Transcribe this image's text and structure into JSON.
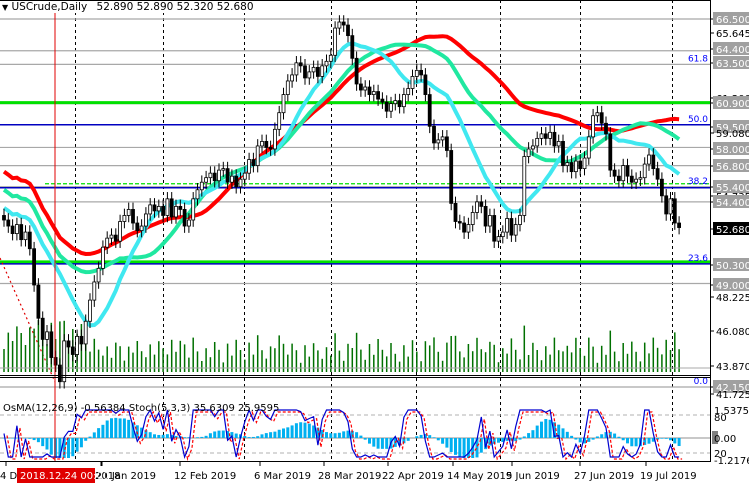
{
  "header": {
    "symbol": "USCrude,Daily",
    "ohlc": "52.890 52.890 52.320 52.680",
    "arrow": "▼"
  },
  "indicator_label": "OsMA(12,26,9) -0.56384  Stoch(5,3,3) 35.6309 25.9595",
  "cursor_time_label": "2018.12.24 00:00",
  "colors": {
    "bull_candle": "#ffffff",
    "bear_candle": "#000000",
    "ma_fast": "#40e8f0",
    "ma_mid": "#20e8a0",
    "ma_slow": "#ff0000",
    "level_green": "#00e000",
    "level_blue": "#0000c0",
    "volume": "#007000",
    "osma": "#00b0f0",
    "stoch_main": "#0000d0",
    "stoch_signal": "#ff0000",
    "cursor": "#e00000",
    "price_tag_bg": "#a0a0a0",
    "current_price_bg": "#000000"
  },
  "chart_data": [
    {
      "type": "candlestick",
      "title": "USCrude, Daily",
      "ohlc_last": {
        "open": 52.89,
        "high": 52.89,
        "low": 52.32,
        "close": 52.68
      },
      "x_ticks": [
        "4 Dec 2018",
        "2018.12.24 00:00",
        "21 Jan 2019",
        "12 Feb 2019",
        "6 Mar 2019",
        "28 Mar 2019",
        "22 Apr 2019",
        "14 May 2019",
        "5 Jun 2019",
        "27 Jun 2019",
        "19 Jul 2019"
      ],
      "y_axis_labels": [
        "66.500",
        "65.645",
        "64.400",
        "63.500",
        "61.200",
        "60.900",
        "59.500",
        "59.080",
        "58.000",
        "56.800",
        "55.400",
        "54.735",
        "54.400",
        "52.680",
        "50.300",
        "49.000",
        "48.225",
        "46.080",
        "43.870",
        "42.150",
        "41.725"
      ],
      "ylim": [
        41.725,
        67.3
      ],
      "highlighted_levels": [
        66.5,
        64.4,
        63.5,
        60.9,
        59.5,
        58.0,
        56.8,
        55.4,
        54.4,
        50.3,
        49.0,
        42.15
      ],
      "current_price": 52.68,
      "fibonacci_levels": [
        {
          "label": "61.8",
          "price": 63.5
        },
        {
          "label": "50.0",
          "price": 59.5
        },
        {
          "label": "38.2",
          "price": 55.4
        },
        {
          "label": "23.6",
          "price": 50.3
        },
        {
          "label": "0.0",
          "price": 42.15
        }
      ],
      "closes_approx": [
        53.2,
        52.8,
        52.3,
        52.9,
        51.9,
        52.4,
        51.3,
        48.9,
        46.7,
        45.3,
        45.8,
        44.1,
        43.6,
        42.5,
        45.2,
        44.8,
        44.3,
        45.5,
        45.0,
        46.5,
        47.9,
        49.1,
        50.0,
        51.4,
        52.0,
        52.2,
        51.8,
        53.1,
        53.5,
        53.9,
        53.0,
        52.5,
        52.8,
        53.6,
        54.2,
        53.8,
        54.1,
        53.5,
        54.6,
        53.4,
        54.1,
        53.9,
        52.8,
        53.2,
        54.6,
        55.2,
        55.7,
        56.0,
        56.3,
        55.8,
        56.5,
        56.6,
        55.7,
        56.1,
        55.4,
        55.9,
        56.3,
        57.2,
        56.8,
        58.1,
        58.4,
        58.0,
        57.9,
        59.2,
        60.3,
        61.5,
        62.4,
        62.8,
        63.6,
        63.4,
        62.6,
        63.0,
        63.3,
        62.7,
        63.4,
        63.7,
        64.1,
        65.9,
        66.3,
        66.1,
        65.4,
        63.9,
        62.2,
        61.8,
        62.0,
        61.5,
        61.7,
        61.2,
        61.0,
        60.4,
        60.9,
        61.1,
        60.7,
        61.5,
        61.9,
        62.7,
        63.1,
        62.8,
        61.5,
        59.4,
        58.3,
        58.5,
        58.7,
        57.8,
        54.3,
        53.1,
        53.0,
        52.4,
        52.9,
        53.7,
        54.4,
        54.1,
        52.8,
        53.5,
        51.8,
        52.1,
        52.4,
        53.3,
        52.2,
        52.9,
        53.5,
        57.4,
        57.9,
        58.1,
        58.6,
        58.9,
        58.6,
        59.0,
        58.1,
        58.4,
        56.8,
        57.0,
        56.4,
        57.1,
        56.6,
        57.3,
        58.7,
        60.1,
        60.3,
        59.6,
        58.9,
        56.5,
        56.1,
        55.8,
        56.8,
        56.1,
        55.7,
        55.9,
        56.0,
        56.9,
        57.5,
        56.6,
        55.9,
        54.8,
        53.6,
        54.6,
        53.0,
        52.7
      ],
      "moving_averages": [
        {
          "name": "MA fast (cyan)",
          "color": "#40e8f0"
        },
        {
          "name": "MA mid (aquamarine)",
          "color": "#20e8a0"
        },
        {
          "name": "MA slow (red)",
          "color": "#ff0000"
        }
      ]
    },
    {
      "type": "bar",
      "title": "Volume",
      "note": "green volume histogram at bottom of main chart"
    },
    {
      "type": "line",
      "title": "OsMA(12,26,9) / Stoch(5,3,3)",
      "series": [
        {
          "name": "OsMA(12,26,9)",
          "last": -0.56384
        },
        {
          "name": "Stoch main",
          "last": 35.6309
        },
        {
          "name": "Stoch signal",
          "last": 25.9595
        }
      ],
      "y_axis_labels": [
        "1.53756",
        "80",
        "0.00",
        "20",
        "-1.2176"
      ],
      "ylim": [
        -1.2176,
        1.53756
      ]
    }
  ]
}
